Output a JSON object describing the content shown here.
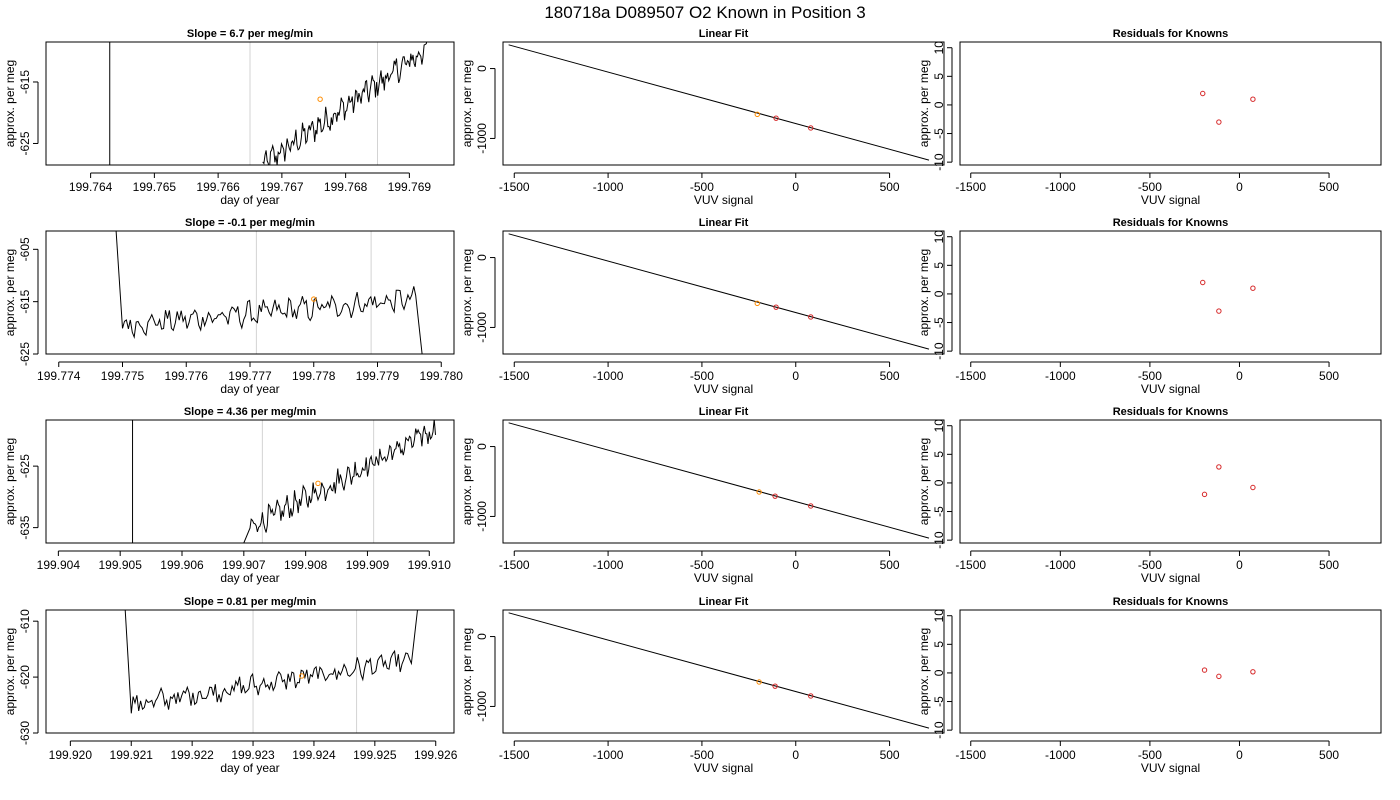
{
  "title": "180718a      D089507   O2 Known in Position  3",
  "colors": {
    "trace": "#000000",
    "reference": "#d3d3d3",
    "marker": "#ff8c00",
    "known": "#d62728"
  },
  "chart_data": [
    {
      "row": 1,
      "type": "line",
      "title": "Slope =  6.7  per meg/min",
      "xlabel": "day of year",
      "ylabel": "approx. per meg",
      "xlim": [
        199.7633,
        199.7697
      ],
      "ylim": [
        -628.5,
        -608.5
      ],
      "xticks": [
        199.764,
        199.765,
        199.766,
        199.767,
        199.768,
        199.769
      ],
      "xtick_labels": [
        "199.764",
        "199.765",
        "199.766",
        "199.767",
        "199.768",
        "199.769"
      ],
      "yticks": [
        -615,
        -625
      ],
      "ytick_labels": [
        "-615",
        "-625"
      ],
      "vlines_black": [
        199.7643
      ],
      "vlines_gray": [
        199.7665,
        199.7685
      ],
      "trace": {
        "x_start": 199.7667,
        "x_end": 199.7693,
        "y_start": -628.5,
        "y_end": -609.5,
        "noise": 1.6
      },
      "marker": {
        "x": 199.7676,
        "y": -617.8
      }
    },
    {
      "row": 1,
      "type": "scatter",
      "title": "Linear Fit",
      "xlabel": "VUV signal",
      "ylabel": "approx. per meg",
      "xlim": [
        -1560,
        790
      ],
      "ylim": [
        -1380,
        380
      ],
      "xticks": [
        -1500,
        -1000,
        -500,
        0,
        500
      ],
      "xtick_labels": [
        "-1500",
        "-1000",
        "-500",
        "0",
        "500"
      ],
      "yticks": [
        0,
        -1000
      ],
      "ytick_labels": [
        "0",
        "-1000"
      ],
      "fit_line": {
        "x": [
          -1530,
          710
        ],
        "y": [
          340,
          -1310
        ]
      },
      "points": [
        {
          "x": -205,
          "y": -655,
          "color": "marker"
        },
        {
          "x": -105,
          "y": -710,
          "color": "known"
        },
        {
          "x": 80,
          "y": -850,
          "color": "known"
        }
      ]
    },
    {
      "row": 1,
      "type": "scatter",
      "title": "Residuals for Knowns",
      "xlabel": "VUV signal",
      "ylabel": "approx. per meg",
      "xlim": [
        -1560,
        790
      ],
      "ylim": [
        -10.5,
        11
      ],
      "xticks": [
        -1500,
        -1000,
        -500,
        0,
        500
      ],
      "xtick_labels": [
        "-1500",
        "-1000",
        "-500",
        "0",
        "500"
      ],
      "yticks": [
        10,
        5,
        0,
        -5,
        -10
      ],
      "ytick_labels": [
        "10",
        "5",
        "0",
        "-5",
        "-10"
      ],
      "points": [
        {
          "x": -205,
          "y": 2,
          "color": "known"
        },
        {
          "x": -115,
          "y": -3,
          "color": "known"
        },
        {
          "x": 75,
          "y": 1,
          "color": "known"
        }
      ]
    },
    {
      "row": 2,
      "type": "line",
      "title": "Slope =  -0.1  per meg/min",
      "xlabel": "day of year",
      "ylabel": "approx. per meg",
      "xlim": [
        199.7738,
        199.7802
      ],
      "ylim": [
        -625,
        -601.5
      ],
      "xticks": [
        199.774,
        199.775,
        199.776,
        199.777,
        199.778,
        199.779,
        199.78
      ],
      "xtick_labels": [
        "199.774",
        "199.775",
        "199.776",
        "199.777",
        "199.778",
        "199.779",
        "199.780"
      ],
      "yticks": [
        -605,
        -615,
        -625
      ],
      "ytick_labels": [
        "-605",
        "-615",
        "-625"
      ],
      "vlines_black": [],
      "vlines_gray": [
        199.7771,
        199.7789
      ],
      "trace": {
        "x_start": 199.775,
        "x_end": 199.7796,
        "y_start": -619.5,
        "y_end": -614.5,
        "noise": 1.7,
        "lead_in": [
          199.7749,
          -601.5
        ],
        "lead_out": [
          199.7797,
          -625
        ]
      },
      "marker": {
        "x": 199.778,
        "y": -614.5
      }
    },
    {
      "row": 2,
      "type": "scatter",
      "title": "Linear Fit",
      "xlabel": "VUV signal",
      "ylabel": "approx. per meg",
      "xlim": [
        -1560,
        790
      ],
      "ylim": [
        -1380,
        380
      ],
      "xticks": [
        -1500,
        -1000,
        -500,
        0,
        500
      ],
      "xtick_labels": [
        "-1500",
        "-1000",
        "-500",
        "0",
        "500"
      ],
      "yticks": [
        0,
        -1000
      ],
      "ytick_labels": [
        "0",
        "-1000"
      ],
      "fit_line": {
        "x": [
          -1530,
          710
        ],
        "y": [
          340,
          -1310
        ]
      },
      "points": [
        {
          "x": -205,
          "y": -655,
          "color": "marker"
        },
        {
          "x": -105,
          "y": -710,
          "color": "known"
        },
        {
          "x": 80,
          "y": -850,
          "color": "known"
        }
      ]
    },
    {
      "row": 2,
      "type": "scatter",
      "title": "Residuals for Knowns",
      "xlabel": "VUV signal",
      "ylabel": "approx. per meg",
      "xlim": [
        -1560,
        790
      ],
      "ylim": [
        -10.5,
        11
      ],
      "xticks": [
        -1500,
        -1000,
        -500,
        0,
        500
      ],
      "xtick_labels": [
        "-1500",
        "-1000",
        "-500",
        "0",
        "500"
      ],
      "yticks": [
        10,
        5,
        0,
        -5,
        -10
      ],
      "ytick_labels": [
        "10",
        "5",
        "0",
        "-5",
        "-10"
      ],
      "points": [
        {
          "x": -205,
          "y": 2,
          "color": "known"
        },
        {
          "x": -115,
          "y": -3,
          "color": "known"
        },
        {
          "x": 75,
          "y": 1,
          "color": "known"
        }
      ]
    },
    {
      "row": 3,
      "type": "line",
      "title": "Slope =  4.36  per meg/min",
      "xlabel": "day of year",
      "ylabel": "approx. per meg",
      "xlim": [
        199.9038,
        199.9104
      ],
      "ylim": [
        -637.5,
        -617.5
      ],
      "xticks": [
        199.904,
        199.905,
        199.906,
        199.907,
        199.908,
        199.909,
        199.91
      ],
      "xtick_labels": [
        "199.904",
        "199.905",
        "199.906",
        "199.907",
        "199.908",
        "199.909",
        "199.910"
      ],
      "yticks": [
        -625,
        -635
      ],
      "ytick_labels": [
        "-625",
        "-635"
      ],
      "vlines_black": [
        199.9052
      ],
      "vlines_gray": [
        199.9073,
        199.9091
      ],
      "trace": {
        "x_start": 199.9071,
        "x_end": 199.9101,
        "y_start": -635,
        "y_end": -619,
        "noise": 1.5,
        "lead_in": [
          199.907,
          -637.5
        ]
      },
      "marker": {
        "x": 199.9082,
        "y": -627.8
      }
    },
    {
      "row": 3,
      "type": "scatter",
      "title": "Linear Fit",
      "xlabel": "VUV signal",
      "ylabel": "approx. per meg",
      "xlim": [
        -1560,
        790
      ],
      "ylim": [
        -1380,
        380
      ],
      "xticks": [
        -1500,
        -1000,
        -500,
        0,
        500
      ],
      "xtick_labels": [
        "-1500",
        "-1000",
        "-500",
        "0",
        "500"
      ],
      "yticks": [
        0,
        -1000
      ],
      "ytick_labels": [
        "0",
        "-1000"
      ],
      "fit_line": {
        "x": [
          -1530,
          710
        ],
        "y": [
          340,
          -1310
        ]
      },
      "points": [
        {
          "x": -195,
          "y": -650,
          "color": "marker"
        },
        {
          "x": -110,
          "y": -710,
          "color": "known"
        },
        {
          "x": 80,
          "y": -850,
          "color": "known"
        }
      ]
    },
    {
      "row": 3,
      "type": "scatter",
      "title": "Residuals for Knowns",
      "xlabel": "VUV signal",
      "ylabel": "approx. per meg",
      "xlim": [
        -1560,
        790
      ],
      "ylim": [
        -10.5,
        11
      ],
      "xticks": [
        -1500,
        -1000,
        -500,
        0,
        500
      ],
      "xtick_labels": [
        "-1500",
        "-1000",
        "-500",
        "0",
        "500"
      ],
      "yticks": [
        10,
        5,
        0,
        -5,
        -10
      ],
      "ytick_labels": [
        "10",
        "5",
        "0",
        "-5",
        "-10"
      ],
      "points": [
        {
          "x": -195,
          "y": -2,
          "color": "known"
        },
        {
          "x": -115,
          "y": 2.8,
          "color": "known"
        },
        {
          "x": 75,
          "y": -0.8,
          "color": "known"
        }
      ]
    },
    {
      "row": 4,
      "type": "line",
      "title": "Slope =  0.81  per meg/min",
      "xlabel": "day of year",
      "ylabel": "approx. per meg",
      "xlim": [
        199.9196,
        199.9263
      ],
      "ylim": [
        -630,
        -608
      ],
      "xticks": [
        199.92,
        199.921,
        199.922,
        199.923,
        199.924,
        199.925,
        199.926
      ],
      "xtick_labels": [
        "199.920",
        "199.921",
        "199.922",
        "199.923",
        "199.924",
        "199.925",
        "199.926"
      ],
      "yticks": [
        -610,
        -620,
        -630
      ],
      "ytick_labels": [
        "-610",
        "-620",
        "-630"
      ],
      "vlines_black": [],
      "vlines_gray": [
        199.923,
        199.9247
      ],
      "trace": {
        "x_start": 199.921,
        "x_end": 199.9256,
        "y_start": -625,
        "y_end": -617,
        "noise": 1.5,
        "lead_in": [
          199.9209,
          -608
        ],
        "lead_out": [
          199.9257,
          -608
        ]
      },
      "marker": {
        "x": 199.9238,
        "y": -619.8
      }
    },
    {
      "row": 4,
      "type": "scatter",
      "title": "Linear Fit",
      "xlabel": "VUV signal",
      "ylabel": "approx. per meg",
      "xlim": [
        -1560,
        790
      ],
      "ylim": [
        -1380,
        380
      ],
      "xticks": [
        -1500,
        -1000,
        -500,
        0,
        500
      ],
      "xtick_labels": [
        "-1500",
        "-1000",
        "-500",
        "0",
        "500"
      ],
      "yticks": [
        0,
        -1000
      ],
      "ytick_labels": [
        "0",
        "-1000"
      ],
      "fit_line": {
        "x": [
          -1530,
          710
        ],
        "y": [
          340,
          -1310
        ]
      },
      "points": [
        {
          "x": -195,
          "y": -650,
          "color": "marker"
        },
        {
          "x": -110,
          "y": -710,
          "color": "known"
        },
        {
          "x": 80,
          "y": -850,
          "color": "known"
        }
      ]
    },
    {
      "row": 4,
      "type": "scatter",
      "title": "Residuals for Knowns",
      "xlabel": "VUV signal",
      "ylabel": "approx. per meg",
      "xlim": [
        -1560,
        790
      ],
      "ylim": [
        -10.5,
        11
      ],
      "xticks": [
        -1500,
        -1000,
        -500,
        0,
        500
      ],
      "xtick_labels": [
        "-1500",
        "-1000",
        "-500",
        "0",
        "500"
      ],
      "yticks": [
        10,
        5,
        0,
        -5,
        -10
      ],
      "ytick_labels": [
        "10",
        "5",
        "0",
        "-5",
        "-10"
      ],
      "points": [
        {
          "x": -195,
          "y": 0.5,
          "color": "known"
        },
        {
          "x": -115,
          "y": -0.6,
          "color": "known"
        },
        {
          "x": 75,
          "y": 0.2,
          "color": "known"
        }
      ]
    }
  ]
}
